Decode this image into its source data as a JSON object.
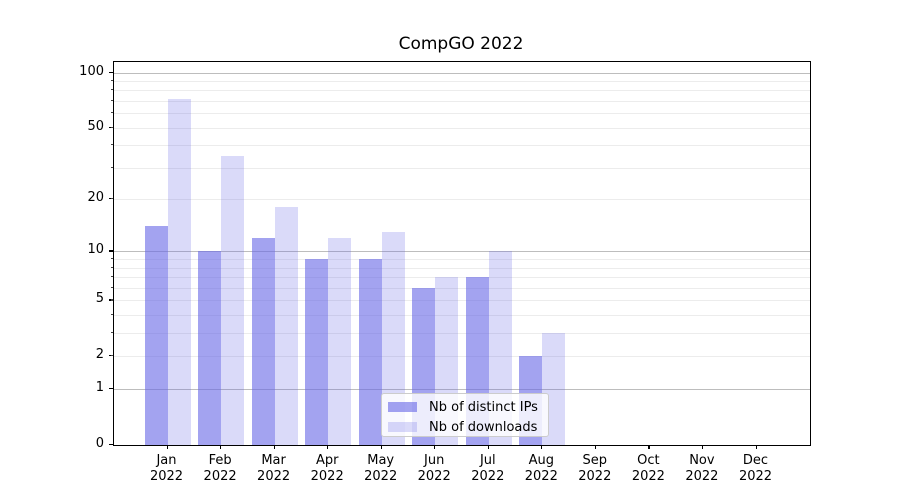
{
  "chart_data": {
    "type": "bar",
    "title": "CompGO 2022",
    "categories": [
      "Jan",
      "Feb",
      "Mar",
      "Apr",
      "May",
      "Jun",
      "Jul",
      "Aug",
      "Sep",
      "Oct",
      "Nov",
      "Dec"
    ],
    "category_year": "2022",
    "series": [
      {
        "name": "Nb of distinct IPs",
        "color": "rgba(102,102,230,0.6)",
        "values": [
          14,
          10,
          12,
          9,
          9,
          6,
          7,
          2,
          0,
          0,
          0,
          0
        ]
      },
      {
        "name": "Nb of downloads",
        "color": "rgba(102,102,230,0.24)",
        "values": [
          72,
          35,
          18,
          12,
          13,
          7,
          10,
          3,
          0,
          0,
          0,
          0
        ]
      }
    ],
    "xlabel": "",
    "ylabel": "",
    "scale": "log1p",
    "ylim": [
      0,
      113
    ],
    "y_tick_labels": [
      100,
      50,
      20,
      10,
      5,
      2,
      1,
      0
    ],
    "y_major_gridlines": [
      100,
      10,
      1
    ],
    "y_minor_gridlines": [
      2,
      3,
      4,
      5,
      6,
      7,
      8,
      9,
      20,
      30,
      40,
      50,
      60,
      70,
      80,
      90
    ],
    "grid": true,
    "legend_position": "lower center",
    "colors": {
      "major_grid": "#bdbdbd",
      "minor_grid": "#ececec",
      "spine": "#000000",
      "background": "#ffffff"
    }
  }
}
